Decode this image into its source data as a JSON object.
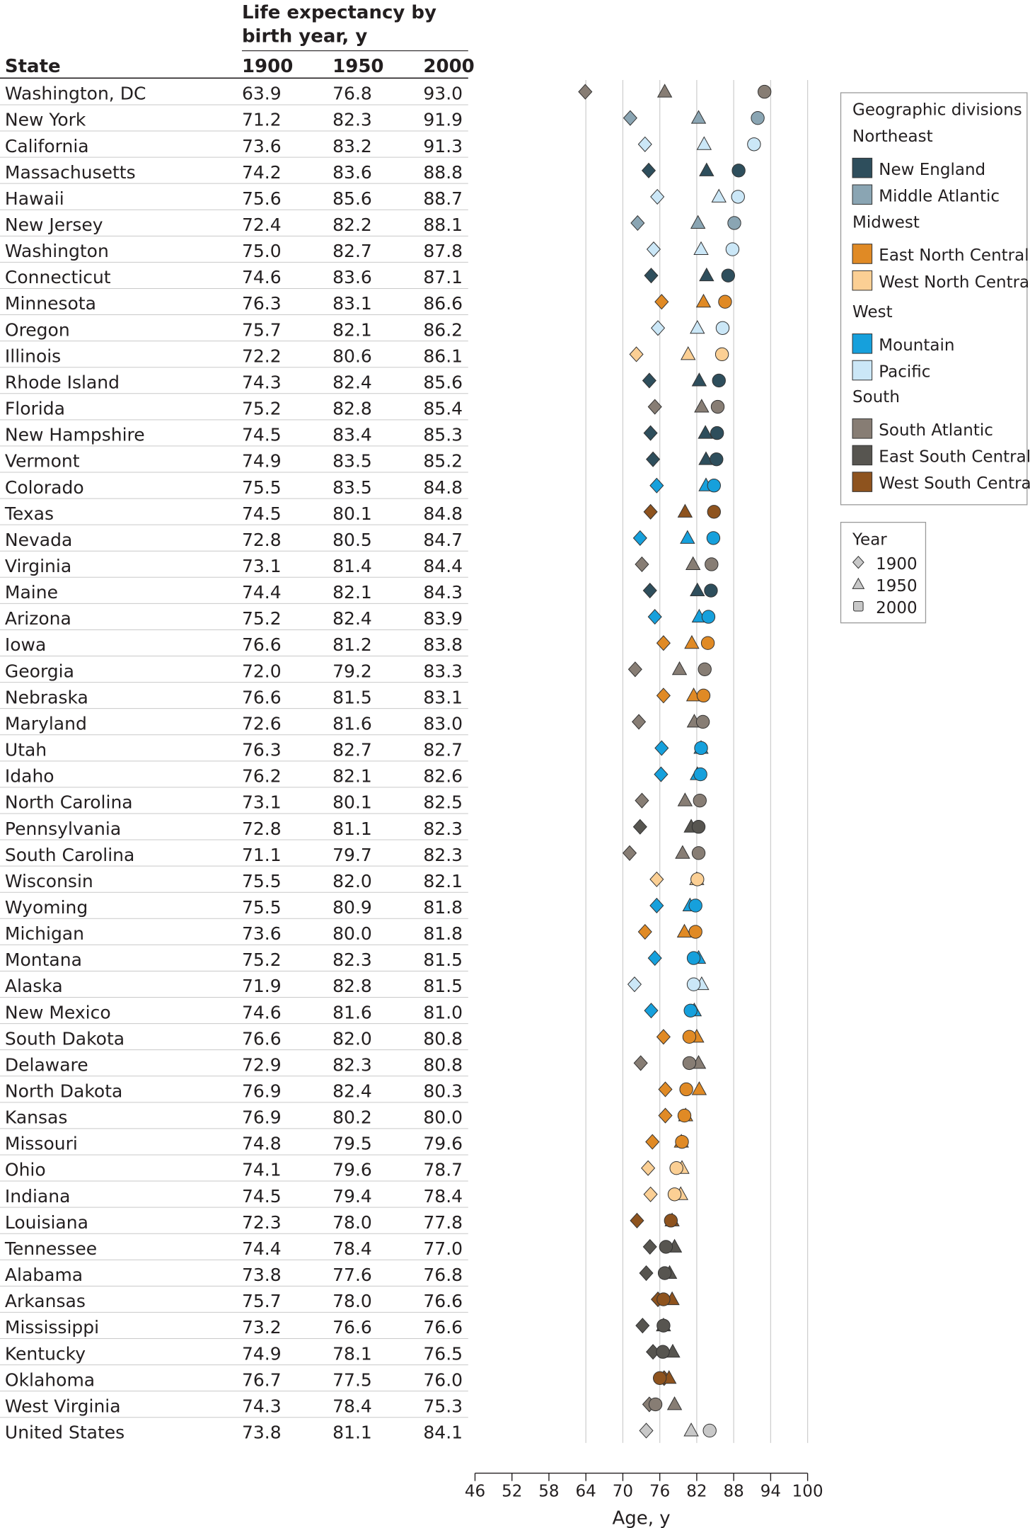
{
  "chart_data": {
    "type": "scatter",
    "table": {
      "group_header": "Life expectancy by birth year, y",
      "group_header_lines": [
        "Life expectancy by",
        "birth year, y"
      ],
      "columns": [
        "State",
        "1900",
        "1950",
        "2000"
      ],
      "rows": [
        {
          "state": "Washington, DC",
          "division": "South Atlantic",
          "v1900": "63.9",
          "v1950": "76.8",
          "v2000": "93.0"
        },
        {
          "state": "New York",
          "division": "Middle Atlantic",
          "v1900": "71.2",
          "v1950": "82.3",
          "v2000": "91.9"
        },
        {
          "state": "California",
          "division": "Pacific",
          "v1900": "73.6",
          "v1950": "83.2",
          "v2000": "91.3"
        },
        {
          "state": "Massachusetts",
          "division": "New England",
          "v1900": "74.2",
          "v1950": "83.6",
          "v2000": "88.8"
        },
        {
          "state": "Hawaii",
          "division": "Pacific",
          "v1900": "75.6",
          "v1950": "85.6",
          "v2000": "88.7"
        },
        {
          "state": "New Jersey",
          "division": "Middle Atlantic",
          "v1900": "72.4",
          "v1950": "82.2",
          "v2000": "88.1"
        },
        {
          "state": "Washington",
          "division": "Pacific",
          "v1900": "75.0",
          "v1950": "82.7",
          "v2000": "87.8"
        },
        {
          "state": "Connecticut",
          "division": "New England",
          "v1900": "74.6",
          "v1950": "83.6",
          "v2000": "87.1"
        },
        {
          "state": "Minnesota",
          "division": "East North Central",
          "v1900": "76.3",
          "v1950": "83.1",
          "v2000": "86.6"
        },
        {
          "state": "Oregon",
          "division": "Pacific",
          "v1900": "75.7",
          "v1950": "82.1",
          "v2000": "86.2"
        },
        {
          "state": "Illinois",
          "division": "West North Central",
          "v1900": "72.2",
          "v1950": "80.6",
          "v2000": "86.1"
        },
        {
          "state": "Rhode Island",
          "division": "New England",
          "v1900": "74.3",
          "v1950": "82.4",
          "v2000": "85.6"
        },
        {
          "state": "Florida",
          "division": "South Atlantic",
          "v1900": "75.2",
          "v1950": "82.8",
          "v2000": "85.4"
        },
        {
          "state": "New Hampshire",
          "division": "New England",
          "v1900": "74.5",
          "v1950": "83.4",
          "v2000": "85.3"
        },
        {
          "state": "Vermont",
          "division": "New England",
          "v1900": "74.9",
          "v1950": "83.5",
          "v2000": "85.2"
        },
        {
          "state": "Colorado",
          "division": "Mountain",
          "v1900": "75.5",
          "v1950": "83.5",
          "v2000": "84.8"
        },
        {
          "state": "Texas",
          "division": "West South Central",
          "v1900": "74.5",
          "v1950": "80.1",
          "v2000": "84.8"
        },
        {
          "state": "Nevada",
          "division": "Mountain",
          "v1900": "72.8",
          "v1950": "80.5",
          "v2000": "84.7"
        },
        {
          "state": "Virginia",
          "division": "South Atlantic",
          "v1900": "73.1",
          "v1950": "81.4",
          "v2000": "84.4"
        },
        {
          "state": "Maine",
          "division": "New England",
          "v1900": "74.4",
          "v1950": "82.1",
          "v2000": "84.3"
        },
        {
          "state": "Arizona",
          "division": "Mountain",
          "v1900": "75.2",
          "v1950": "82.4",
          "v2000": "83.9"
        },
        {
          "state": "Iowa",
          "division": "East North Central",
          "v1900": "76.6",
          "v1950": "81.2",
          "v2000": "83.8"
        },
        {
          "state": "Georgia",
          "division": "South Atlantic",
          "v1900": "72.0",
          "v1950": "79.2",
          "v2000": "83.3"
        },
        {
          "state": "Nebraska",
          "division": "East North Central",
          "v1900": "76.6",
          "v1950": "81.5",
          "v2000": "83.1"
        },
        {
          "state": "Maryland",
          "division": "South Atlantic",
          "v1900": "72.6",
          "v1950": "81.6",
          "v2000": "83.0"
        },
        {
          "state": "Utah",
          "division": "Mountain",
          "v1900": "76.3",
          "v1950": "82.7",
          "v2000": "82.7"
        },
        {
          "state": "Idaho",
          "division": "Mountain",
          "v1900": "76.2",
          "v1950": "82.1",
          "v2000": "82.6"
        },
        {
          "state": "North Carolina",
          "division": "South Atlantic",
          "v1900": "73.1",
          "v1950": "80.1",
          "v2000": "82.5"
        },
        {
          "state": "Pennsylvania",
          "division": "East South Central",
          "v1900": "72.8",
          "v1950": "81.1",
          "v2000": "82.3"
        },
        {
          "state": "South Carolina",
          "division": "South Atlantic",
          "v1900": "71.1",
          "v1950": "79.7",
          "v2000": "82.3"
        },
        {
          "state": "Wisconsin",
          "division": "West North Central",
          "v1900": "75.5",
          "v1950": "82.0",
          "v2000": "82.1"
        },
        {
          "state": "Wyoming",
          "division": "Mountain",
          "v1900": "75.5",
          "v1950": "80.9",
          "v2000": "81.8"
        },
        {
          "state": "Michigan",
          "division": "East North Central",
          "v1900": "73.6",
          "v1950": "80.0",
          "v2000": "81.8"
        },
        {
          "state": "Montana",
          "division": "Mountain",
          "v1900": "75.2",
          "v1950": "82.3",
          "v2000": "81.5"
        },
        {
          "state": "Alaska",
          "division": "Pacific",
          "v1900": "71.9",
          "v1950": "82.8",
          "v2000": "81.5"
        },
        {
          "state": "New Mexico",
          "division": "Mountain",
          "v1900": "74.6",
          "v1950": "81.6",
          "v2000": "81.0"
        },
        {
          "state": "South Dakota",
          "division": "East North Central",
          "v1900": "76.6",
          "v1950": "82.0",
          "v2000": "80.8"
        },
        {
          "state": "Delaware",
          "division": "South Atlantic",
          "v1900": "72.9",
          "v1950": "82.3",
          "v2000": "80.8"
        },
        {
          "state": "North Dakota",
          "division": "East North Central",
          "v1900": "76.9",
          "v1950": "82.4",
          "v2000": "80.3"
        },
        {
          "state": "Kansas",
          "division": "East North Central",
          "v1900": "76.9",
          "v1950": "80.2",
          "v2000": "80.0"
        },
        {
          "state": "Missouri",
          "division": "East North Central",
          "v1900": "74.8",
          "v1950": "79.5",
          "v2000": "79.6"
        },
        {
          "state": "Ohio",
          "division": "West North Central",
          "v1900": "74.1",
          "v1950": "79.6",
          "v2000": "78.7"
        },
        {
          "state": "Indiana",
          "division": "West North Central",
          "v1900": "74.5",
          "v1950": "79.4",
          "v2000": "78.4"
        },
        {
          "state": "Louisiana",
          "division": "West South Central",
          "v1900": "72.3",
          "v1950": "78.0",
          "v2000": "77.8"
        },
        {
          "state": "Tennessee",
          "division": "East South Central",
          "v1900": "74.4",
          "v1950": "78.4",
          "v2000": "77.0"
        },
        {
          "state": "Alabama",
          "division": "East South Central",
          "v1900": "73.8",
          "v1950": "77.6",
          "v2000": "76.8"
        },
        {
          "state": "Arkansas",
          "division": "West South Central",
          "v1900": "75.7",
          "v1950": "78.0",
          "v2000": "76.6"
        },
        {
          "state": "Mississippi",
          "division": "East South Central",
          "v1900": "73.2",
          "v1950": "76.6",
          "v2000": "76.6"
        },
        {
          "state": "Kentucky",
          "division": "East South Central",
          "v1900": "74.9",
          "v1950": "78.1",
          "v2000": "76.5"
        },
        {
          "state": "Oklahoma",
          "division": "West South Central",
          "v1900": "76.7",
          "v1950": "77.5",
          "v2000": "76.0"
        },
        {
          "state": "West Virginia",
          "division": "South Atlantic",
          "v1900": "74.3",
          "v1950": "78.4",
          "v2000": "75.3"
        },
        {
          "state": "United States",
          "division": "national",
          "v1900": "73.8",
          "v1950": "81.1",
          "v2000": "84.1"
        }
      ]
    },
    "x_axis": {
      "label": "Age, y",
      "range": [
        46,
        100
      ],
      "ticks": [
        46,
        52,
        58,
        64,
        70,
        76,
        82,
        88,
        94,
        100
      ],
      "gridlines": [
        64,
        70,
        76,
        82,
        88,
        94,
        100
      ]
    },
    "legend_divisions": {
      "title": "Geographic divisions",
      "groups": [
        {
          "region": "Northeast",
          "divisions": [
            {
              "name": "New England",
              "color": "#2e4e5c"
            },
            {
              "name": "Middle Atlantic",
              "color": "#8aa5b3"
            }
          ]
        },
        {
          "region": "Midwest",
          "divisions": [
            {
              "name": "East North Central",
              "color": "#e08a25"
            },
            {
              "name": "West North Central",
              "color": "#fbcf94"
            }
          ]
        },
        {
          "region": "West",
          "divisions": [
            {
              "name": "Mountain",
              "color": "#16a0dc"
            },
            {
              "name": "Pacific",
              "color": "#cbe7f7"
            }
          ]
        },
        {
          "region": "South",
          "divisions": [
            {
              "name": "South Atlantic",
              "color": "#877d74"
            },
            {
              "name": "East South Central",
              "color": "#575550"
            },
            {
              "name": "West South Central",
              "color": "#8e531e"
            }
          ]
        }
      ],
      "national_color": "#c8c8c8"
    },
    "legend_year": {
      "title": "Year",
      "items": [
        {
          "year": "1900",
          "marker": "diamond"
        },
        {
          "year": "1950",
          "marker": "triangle"
        },
        {
          "year": "2000",
          "marker": "circle"
        }
      ]
    },
    "grid": true,
    "legend_position": "right"
  }
}
